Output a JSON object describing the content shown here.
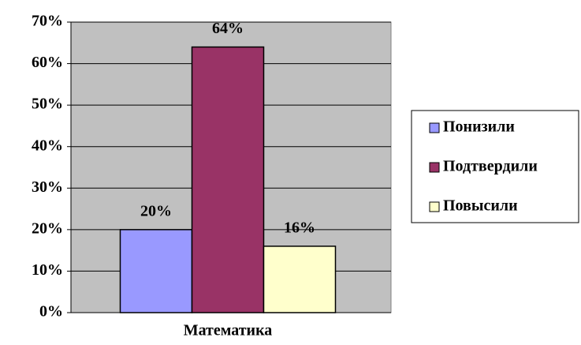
{
  "chart_data": {
    "type": "bar",
    "categories": [
      "Математика"
    ],
    "series": [
      {
        "name": "Понизили",
        "color": "#9999ff",
        "values": [
          20
        ],
        "value_labels": [
          "20%"
        ]
      },
      {
        "name": "Подтвердили",
        "color": "#993366",
        "values": [
          64
        ],
        "value_labels": [
          "64%"
        ]
      },
      {
        "name": "Повысили",
        "color": "#ffffcc",
        "values": [
          16
        ],
        "value_labels": [
          "16%"
        ]
      }
    ],
    "ylim": [
      0,
      70
    ],
    "yticks": [
      {
        "value": 0,
        "label": "0%"
      },
      {
        "value": 10,
        "label": "10%"
      },
      {
        "value": 20,
        "label": "20%"
      },
      {
        "value": 30,
        "label": "30%"
      },
      {
        "value": 40,
        "label": "40%"
      },
      {
        "value": 50,
        "label": "50%"
      },
      {
        "value": 60,
        "label": "60%"
      },
      {
        "value": 70,
        "label": "70%"
      }
    ],
    "grid": true,
    "legend": "right"
  }
}
